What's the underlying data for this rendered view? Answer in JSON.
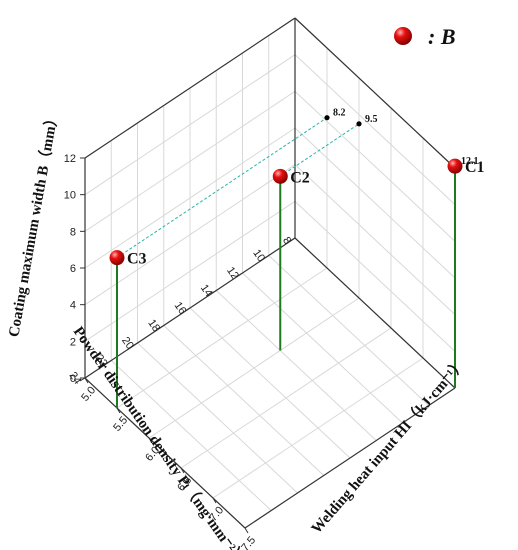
{
  "chart_data": {
    "type": "scatter3d",
    "axes": {
      "x": {
        "label": "Welding heat input HI（kJ·cm⁻¹）",
        "range": [
          5.0,
          7.5
        ],
        "ticks": [
          "5.0",
          "5.5",
          "6.0",
          "6.5",
          "7.0",
          "7.5"
        ]
      },
      "y": {
        "label": "Powder distribution density Pₗ（mg·mm⁻²）",
        "range": [
          8,
          24
        ],
        "ticks": [
          "8",
          "10",
          "12",
          "14",
          "16",
          "18",
          "20",
          "22",
          "24"
        ]
      },
      "z": {
        "label": "Coating maximum width B（mm）",
        "range": [
          0,
          12
        ],
        "ticks": [
          "0",
          "2",
          "4",
          "6",
          "8",
          "10",
          "12"
        ]
      }
    },
    "legend": {
      "marker": "red-sphere",
      "text": ": B",
      "placement": "top-right"
    },
    "points": [
      {
        "name": "C1",
        "x": 7.5,
        "y": 8,
        "z": 12.1,
        "value_label": "12.1"
      },
      {
        "name": "C2",
        "x": 6.0,
        "y": 14,
        "z": 9.5,
        "value_label": "9.5"
      },
      {
        "name": "C3",
        "x": 5.5,
        "y": 24,
        "z": 8.2,
        "value_label": "8.2"
      }
    ],
    "grid": true,
    "colors": {
      "marker": "#cc0000",
      "stem": "#1e7a1e",
      "projection": "#2ab5a5",
      "grid": "#d8d8d8",
      "axis": "#333333"
    }
  }
}
